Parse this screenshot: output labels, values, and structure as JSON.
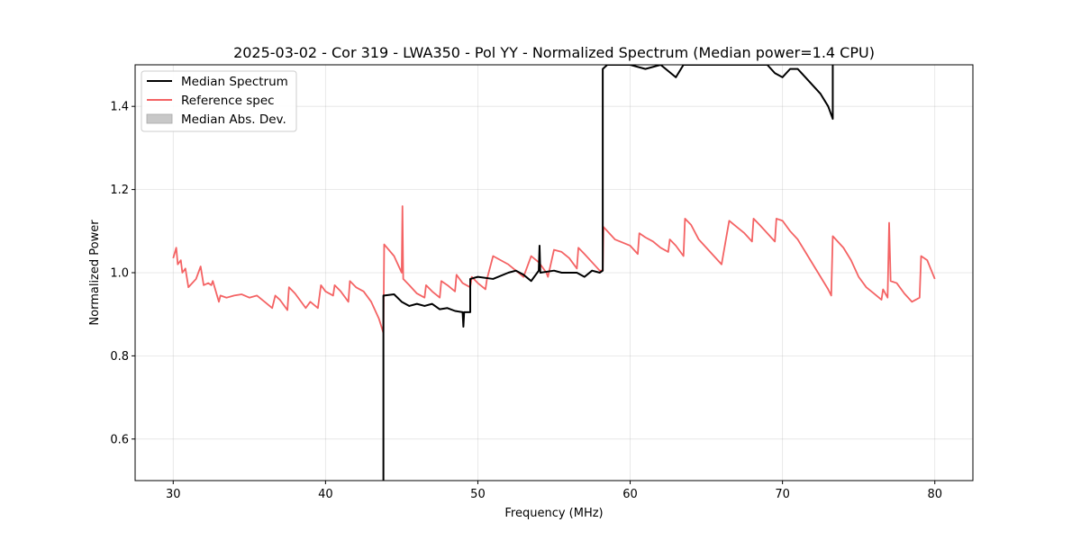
{
  "chart_data": {
    "type": "line",
    "title": "2025-03-02 - Cor 319 - LWA350 - Pol YY - Normalized Spectrum (Median power=1.4 CPU)",
    "xlabel": "Frequency (MHz)",
    "ylabel": "Normalized Power",
    "xlim": [
      27.5,
      82.5
    ],
    "ylim": [
      0.5,
      1.5
    ],
    "xticks": [
      30,
      40,
      50,
      60,
      70,
      80
    ],
    "yticks": [
      0.6,
      0.8,
      1.0,
      1.2,
      1.4
    ],
    "xtick_labels": [
      "30",
      "40",
      "50",
      "60",
      "70",
      "80"
    ],
    "ytick_labels": [
      "0.6",
      "0.8",
      "1.0",
      "1.2",
      "1.4"
    ],
    "grid": true,
    "legend_position": "top-left",
    "legend": [
      "Median Spectrum",
      "Reference spec",
      "Median Abs. Dev."
    ],
    "series": [
      {
        "name": "Median Spectrum",
        "color": "#000000",
        "x": [
          43.8,
          43.8,
          43.85,
          44.5,
          45.0,
          45.5,
          46.0,
          46.5,
          47.0,
          47.5,
          48.0,
          48.5,
          49.0,
          49.05,
          49.1,
          49.15,
          49.5,
          49.5,
          50.0,
          51.0,
          52.0,
          52.5,
          53.0,
          53.5,
          54.0,
          54.05,
          54.1,
          55.0,
          55.5,
          56.0,
          56.5,
          57.0,
          57.5,
          58.0,
          58.2,
          58.2,
          58.5,
          59.0,
          59.5,
          60.0,
          61.0,
          62.0,
          63.0,
          63.5,
          64.0,
          66.0,
          68.0,
          69.0,
          69.5,
          70.0,
          70.5,
          71.0,
          71.5,
          72.0,
          72.5,
          73.0,
          73.3,
          73.3
        ],
        "values": [
          0.5,
          0.945,
          0.945,
          0.948,
          0.93,
          0.92,
          0.925,
          0.92,
          0.925,
          0.912,
          0.915,
          0.908,
          0.905,
          0.87,
          0.905,
          0.905,
          0.905,
          0.985,
          0.99,
          0.985,
          1.0,
          1.005,
          0.995,
          0.98,
          1.005,
          1.065,
          1.0,
          1.005,
          1.0,
          1.0,
          1.0,
          0.99,
          1.005,
          1.0,
          1.005,
          1.49,
          1.5,
          1.5,
          1.5,
          1.5,
          1.49,
          1.5,
          1.47,
          1.5,
          1.5,
          1.5,
          1.5,
          1.5,
          1.48,
          1.47,
          1.49,
          1.49,
          1.47,
          1.45,
          1.43,
          1.4,
          1.37,
          1.5
        ]
      },
      {
        "name": "Reference spec",
        "color": "#f46364",
        "x": [
          30.0,
          30.2,
          30.3,
          30.5,
          30.6,
          30.8,
          31.0,
          31.5,
          31.8,
          32.0,
          32.3,
          32.5,
          32.6,
          33.0,
          33.1,
          33.5,
          34.0,
          34.5,
          35.0,
          35.5,
          36.0,
          36.5,
          36.7,
          37.0,
          37.5,
          37.6,
          38.0,
          38.5,
          38.7,
          39.0,
          39.5,
          39.7,
          40.0,
          40.5,
          40.6,
          41.0,
          41.5,
          41.6,
          42.0,
          42.5,
          43.0,
          43.5,
          43.8,
          43.85,
          44.5,
          45.0,
          45.05,
          45.1,
          45.5,
          46.0,
          46.5,
          46.6,
          47.0,
          47.5,
          47.6,
          48.0,
          48.5,
          48.6,
          49.0,
          49.5,
          49.6,
          50.0,
          50.5,
          50.6,
          51.0,
          51.5,
          52.0,
          52.5,
          53.0,
          53.5,
          54.0,
          54.5,
          54.6,
          55.0,
          55.5,
          56.0,
          56.5,
          56.6,
          57.0,
          57.5,
          58.0,
          58.2,
          58.25,
          59.0,
          60.0,
          60.5,
          60.6,
          61.0,
          61.5,
          62.0,
          62.5,
          62.6,
          63.0,
          63.5,
          63.6,
          64.0,
          64.5,
          65.0,
          65.5,
          66.0,
          66.5,
          67.0,
          67.5,
          68.0,
          68.1,
          68.5,
          69.0,
          69.5,
          69.6,
          70.0,
          70.5,
          71.0,
          71.5,
          72.0,
          72.5,
          73.0,
          73.2,
          73.3,
          74.0,
          74.5,
          75.0,
          75.5,
          76.0,
          76.5,
          76.6,
          76.9,
          77.0,
          77.1,
          77.5,
          78.0,
          78.5,
          79.0,
          79.1,
          79.5,
          80.0
        ],
        "values": [
          1.035,
          1.06,
          1.02,
          1.03,
          1.0,
          1.01,
          0.965,
          0.985,
          1.015,
          0.97,
          0.975,
          0.97,
          0.98,
          0.93,
          0.945,
          0.94,
          0.945,
          0.948,
          0.94,
          0.945,
          0.93,
          0.915,
          0.945,
          0.935,
          0.91,
          0.965,
          0.95,
          0.925,
          0.915,
          0.93,
          0.915,
          0.97,
          0.955,
          0.945,
          0.97,
          0.955,
          0.93,
          0.98,
          0.965,
          0.955,
          0.93,
          0.89,
          0.855,
          1.068,
          1.04,
          1.0,
          1.16,
          0.985,
          0.97,
          0.95,
          0.94,
          0.97,
          0.955,
          0.94,
          0.98,
          0.97,
          0.955,
          0.995,
          0.975,
          0.965,
          0.99,
          0.975,
          0.96,
          0.985,
          1.04,
          1.03,
          1.02,
          1.005,
          0.99,
          1.04,
          1.025,
          1.0,
          0.99,
          1.055,
          1.05,
          1.035,
          1.01,
          1.06,
          1.045,
          1.025,
          1.005,
          1.005,
          1.11,
          1.08,
          1.065,
          1.045,
          1.095,
          1.085,
          1.075,
          1.06,
          1.05,
          1.08,
          1.065,
          1.04,
          1.13,
          1.115,
          1.08,
          1.06,
          1.04,
          1.02,
          1.125,
          1.11,
          1.095,
          1.075,
          1.13,
          1.115,
          1.095,
          1.075,
          1.13,
          1.125,
          1.1,
          1.08,
          1.05,
          1.02,
          0.99,
          0.96,
          0.945,
          1.088,
          1.06,
          1.03,
          0.99,
          0.965,
          0.95,
          0.935,
          0.96,
          0.94,
          1.12,
          0.98,
          0.975,
          0.95,
          0.93,
          0.94,
          1.04,
          1.03,
          0.985
        ]
      }
    ]
  }
}
